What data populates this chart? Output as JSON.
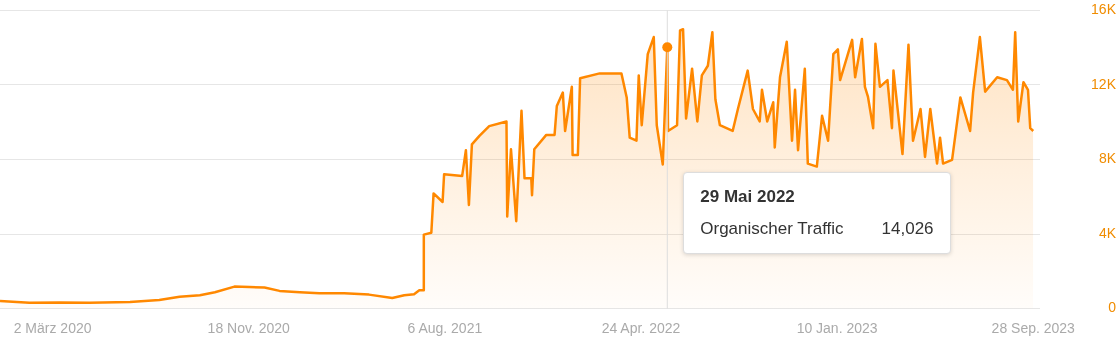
{
  "chart_data": {
    "type": "area",
    "x": [
      "2019-12-23",
      "2020-01-31",
      "2020-03-11",
      "2020-04-20",
      "2020-06-13",
      "2020-07-22",
      "2020-08-18",
      "2020-09-14",
      "2020-10-04",
      "2020-10-30",
      "2020-11-19",
      "2020-12-09",
      "2020-12-29",
      "2021-01-25",
      "2021-02-20",
      "2021-03-25",
      "2021-04-27",
      "2021-05-28",
      "2021-06-13",
      "2021-06-26",
      "2021-07-03",
      "2021-07-08",
      "2021-07-09",
      "2021-07-19",
      "2021-07-22",
      "2021-08-03",
      "2021-08-05",
      "2021-08-29",
      "2021-09-03",
      "2021-09-07",
      "2021-09-11",
      "2021-09-21",
      "2021-10-04",
      "2021-10-27",
      "2021-10-28",
      "2021-11-02",
      "2021-11-09",
      "2021-11-16",
      "2021-11-20",
      "2021-11-29",
      "2021-11-30",
      "2021-12-03",
      "2021-12-19",
      "2021-12-30",
      "2022-01-02",
      "2022-01-10",
      "2022-01-13",
      "2022-01-22",
      "2022-01-23",
      "2022-01-30",
      "2022-02-02",
      "2022-02-28",
      "2022-03-29",
      "2022-04-05",
      "2022-04-09",
      "2022-04-18",
      "2022-04-21",
      "2022-04-25",
      "2022-05-03",
      "2022-05-11",
      "2022-05-15",
      "2022-05-23",
      "2022-05-29",
      "2022-05-30",
      "2022-06-11",
      "2022-06-15",
      "2022-06-19",
      "2022-06-23",
      "2022-07-01",
      "2022-07-08",
      "2022-07-14",
      "2022-07-22",
      "2022-07-28",
      "2022-08-01",
      "2022-08-07",
      "2022-08-24",
      "2022-08-31",
      "2022-09-13",
      "2022-09-20",
      "2022-09-29",
      "2022-10-02",
      "2022-10-09",
      "2022-10-17",
      "2022-10-19",
      "2022-10-26",
      "2022-11-04",
      "2022-11-11",
      "2022-11-15",
      "2022-11-19",
      "2022-11-28",
      "2022-12-02",
      "2022-12-14",
      "2022-12-21",
      "2022-12-29",
      "2023-01-05",
      "2023-01-11",
      "2023-01-14",
      "2023-01-30",
      "2023-02-03",
      "2023-02-12",
      "2023-02-16",
      "2023-02-20",
      "2023-02-27",
      "2023-03-02",
      "2023-03-08",
      "2023-03-18",
      "2023-03-24",
      "2023-03-26",
      "2023-04-07",
      "2023-04-15",
      "2023-04-21",
      "2023-05-01",
      "2023-05-07",
      "2023-05-14",
      "2023-05-23",
      "2023-05-27",
      "2023-05-31",
      "2023-06-12",
      "2023-06-23",
      "2023-07-06",
      "2023-07-10",
      "2023-07-19",
      "2023-07-26",
      "2023-08-11",
      "2023-08-24",
      "2023-09-01",
      "2023-09-04",
      "2023-09-08",
      "2023-09-15",
      "2023-09-21",
      "2023-09-24",
      "2023-09-28"
    ],
    "series": [
      {
        "color": "#ff8800",
        "values": [
          410,
          310,
          330,
          310,
          360,
          460,
          640,
          720,
          880,
          1180,
          1160,
          1130,
          950,
          880,
          820,
          820,
          750,
          570,
          720,
          770,
          980,
          980,
          3970,
          4070,
          6180,
          5720,
          7210,
          7110,
          8500,
          5560,
          8810,
          9270,
          9790,
          10040,
          4940,
          8550,
          4690,
          10610,
          7000,
          7000,
          6080,
          8550,
          9320,
          9320,
          10870,
          11590,
          9530,
          11900,
          8240,
          8240,
          12360,
          12620,
          12620,
          11330,
          9170,
          9010,
          12510,
          9840,
          13650,
          14570,
          9840,
          7730,
          14026,
          9530,
          9840,
          14930,
          14990,
          10200,
          12870,
          10040,
          12510,
          13030,
          14830,
          11230,
          9840,
          9530,
          10710,
          12770,
          10710,
          10040,
          11740,
          10040,
          11070,
          8650,
          12410,
          14320,
          9010,
          11740,
          8500,
          12870,
          7780,
          7620,
          10350,
          9010,
          13650,
          13910,
          12260,
          14420,
          12410,
          14470,
          11900,
          11380,
          9680,
          14210,
          11900,
          12260,
          9680,
          12770,
          8290,
          14160,
          9010,
          10710,
          8140,
          10710,
          7780,
          9170,
          7780,
          7980,
          11330,
          9530,
          11590,
          14570,
          11640,
          12410,
          12260,
          11740,
          14830,
          10040,
          12150,
          11740,
          9680,
          9530
        ]
      }
    ],
    "xlim": [
      "2019-12-23",
      "2023-10-07"
    ],
    "xticks": [
      {
        "value": "2020-03-02",
        "label": "2 März 2020"
      },
      {
        "value": "2020-11-18",
        "label": "18 Nov. 2020"
      },
      {
        "value": "2021-08-06",
        "label": "6 Aug. 2021"
      },
      {
        "value": "2022-04-24",
        "label": "24 Apr. 2022"
      },
      {
        "value": "2023-01-10",
        "label": "10 Jan. 2023"
      },
      {
        "value": "2023-09-28",
        "label": "28 Sep. 2023"
      }
    ],
    "ylim": [
      0,
      16000
    ],
    "yticks": [
      {
        "value": 0,
        "label": "0"
      },
      {
        "value": 4000,
        "label": "4K"
      },
      {
        "value": 8000,
        "label": "8K"
      },
      {
        "value": 12000,
        "label": "12K"
      },
      {
        "value": 16000,
        "label": "16K"
      }
    ],
    "grid": "y",
    "legend": false,
    "marker": "none",
    "ref_lines": [
      {
        "axis": "x",
        "value": "2022-05-29",
        "color": "#dddddd"
      }
    ],
    "annotations": [
      "29 Mai 2022",
      "Organischer Traffic",
      "14,026"
    ]
  }
}
